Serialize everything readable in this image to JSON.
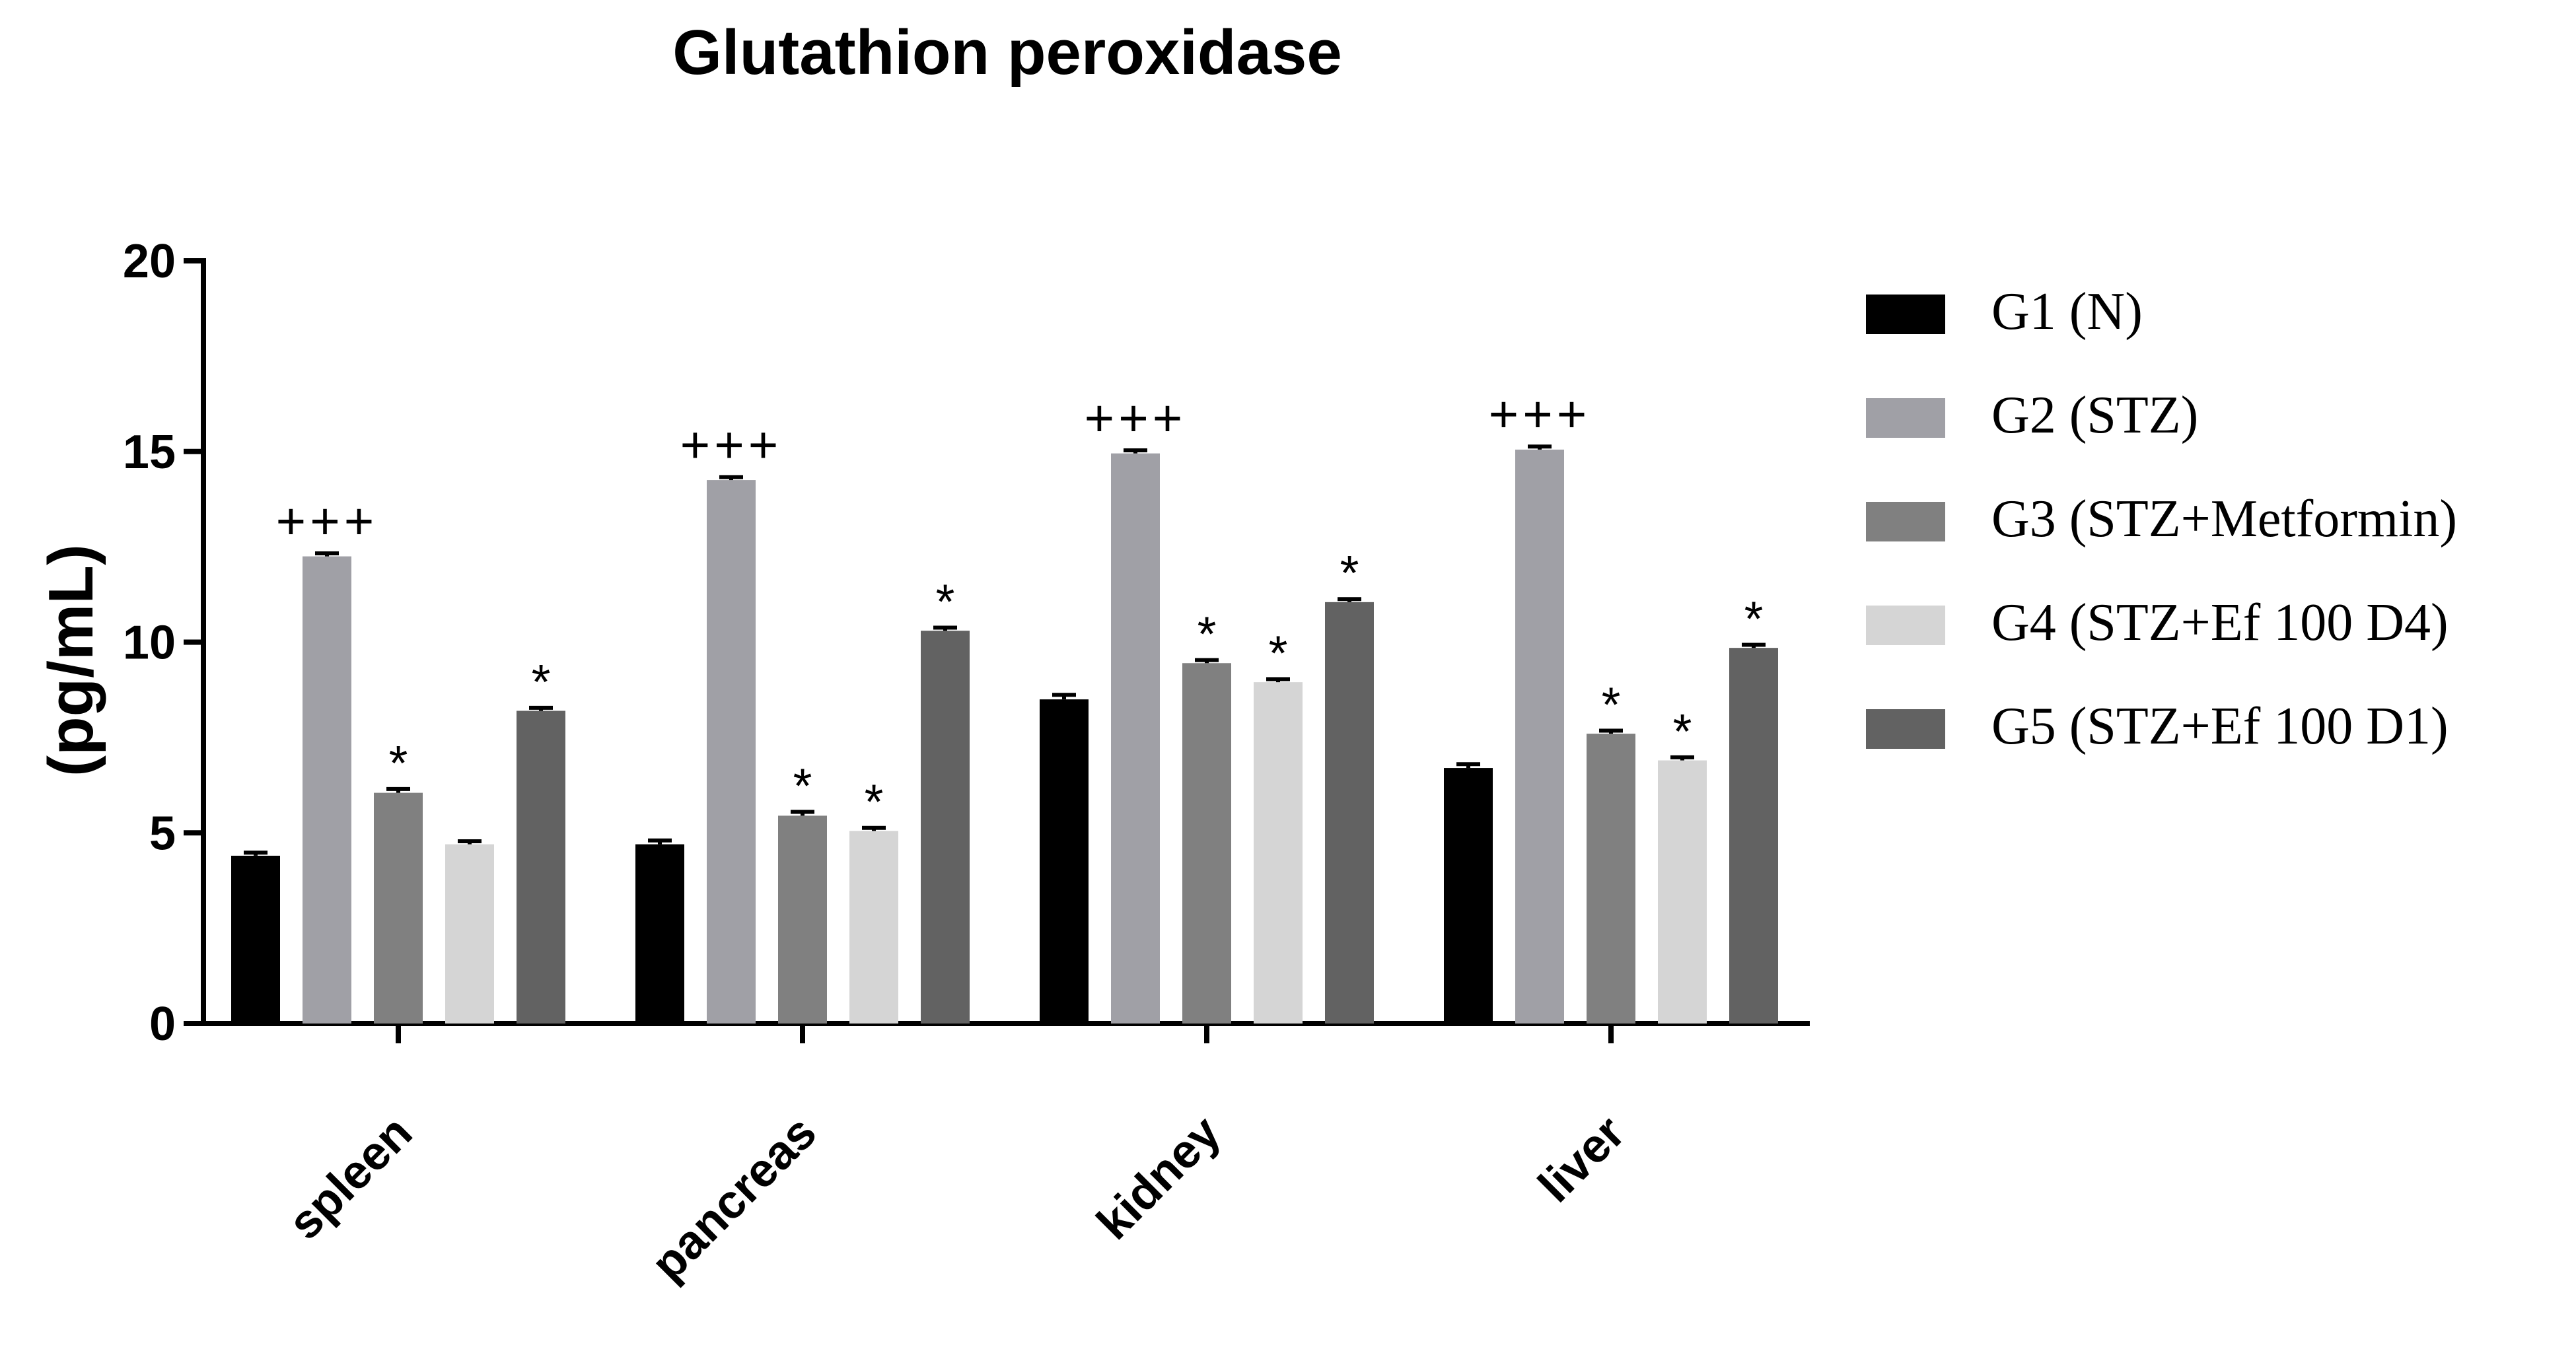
{
  "chart_data": {
    "type": "bar",
    "title": "Glutathion peroxidase",
    "xlabel": "",
    "ylabel": "(pg/mL)",
    "ylim": [
      0,
      20
    ],
    "yticks": [
      0,
      5,
      10,
      15,
      20
    ],
    "categories": [
      "spleen",
      "pancreas",
      "kidney",
      "liver"
    ],
    "series": [
      {
        "name": "G1 (N)",
        "color": "#000000",
        "values": [
          4.4,
          4.7,
          8.5,
          6.7
        ],
        "errors": [
          0.08,
          0.1,
          0.12,
          0.1
        ],
        "annotations": [
          "",
          "",
          "",
          ""
        ]
      },
      {
        "name": "G2 (STZ)",
        "color": "#a0a0a6",
        "values": [
          12.25,
          14.25,
          14.95,
          15.05
        ],
        "errors": [
          0.08,
          0.08,
          0.08,
          0.08
        ],
        "annotations": [
          "+++",
          "+++",
          "+++",
          "+++"
        ]
      },
      {
        "name": "G3 (STZ+Metformin)",
        "color": "#808080",
        "values": [
          6.05,
          5.45,
          9.45,
          7.6
        ],
        "errors": [
          0.1,
          0.1,
          0.08,
          0.08
        ],
        "annotations": [
          "*",
          "*",
          "*",
          "*"
        ]
      },
      {
        "name": "G4 (STZ+Ef 100 D4)",
        "color": "#d5d5d5",
        "values": [
          4.7,
          5.05,
          8.95,
          6.9
        ],
        "errors": [
          0.08,
          0.08,
          0.08,
          0.08
        ],
        "annotations": [
          "",
          "*",
          "*",
          "*"
        ]
      },
      {
        "name": "G5 (STZ+Ef 100 D1)",
        "color": "#626262",
        "values": [
          8.2,
          10.3,
          11.05,
          9.85
        ],
        "errors": [
          0.08,
          0.08,
          0.08,
          0.08
        ],
        "annotations": [
          "*",
          "*",
          "*",
          "*"
        ]
      }
    ]
  }
}
